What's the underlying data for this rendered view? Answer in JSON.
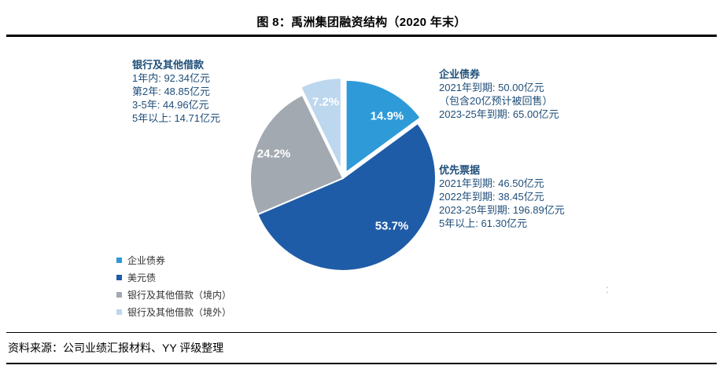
{
  "figure": {
    "title": "图 8：禹洲集团融资结构（2020 年末）",
    "source": "资料来源：公司业绩汇报材料、YY 评级整理"
  },
  "annotations": {
    "bank_borrowings": {
      "title": "银行及其他借款",
      "lines": [
        "1年内: 92.34亿元",
        "第2年: 48.85亿元",
        "3-5年: 44.96亿元",
        "5年以上: 14.71亿元"
      ]
    },
    "corporate_bonds": {
      "title": "企业债券",
      "lines": [
        "2021年到期: 50.00亿元",
        "（包含20亿预计被回售）",
        "2023-25年到期: 65.00亿元"
      ]
    },
    "senior_notes": {
      "title": "优先票据",
      "lines": [
        "2021年到期: 46.50亿元",
        "2022年到期: 38.45亿元",
        "2023-25年到期: 196.89亿元",
        "5年以上: 61.30亿元"
      ]
    }
  },
  "chart_data": {
    "type": "pie",
    "title": "禹洲集团融资结构（2020年末）",
    "unit": "%",
    "start_angle_deg": 0,
    "direction": "clockwise",
    "label_color": "#ffffff",
    "slices": [
      {
        "label": "企业债券",
        "value": 14.9,
        "pct_label": "14.9%",
        "color": "#2E9BD8"
      },
      {
        "label": "美元债",
        "value": 53.7,
        "pct_label": "53.7%",
        "color": "#1F5CA8"
      },
      {
        "label": "银行及其他借款（境内）",
        "value": 24.2,
        "pct_label": "24.2%",
        "color": "#A2A9B0"
      },
      {
        "label": "银行及其他借款（境外）",
        "value": 7.2,
        "pct_label": "7.2%",
        "color": "#BDD7EE"
      }
    ]
  },
  "legend": {
    "items": [
      {
        "label": "企业债券",
        "color": "#2E9BD8"
      },
      {
        "label": "美元债",
        "color": "#1F5CA8"
      },
      {
        "label": "银行及其他借款（境内）",
        "color": "#A2A9B0"
      },
      {
        "label": "银行及其他借款（境外）",
        "color": "#BDD7EE"
      }
    ]
  },
  "stray_mark": ":"
}
